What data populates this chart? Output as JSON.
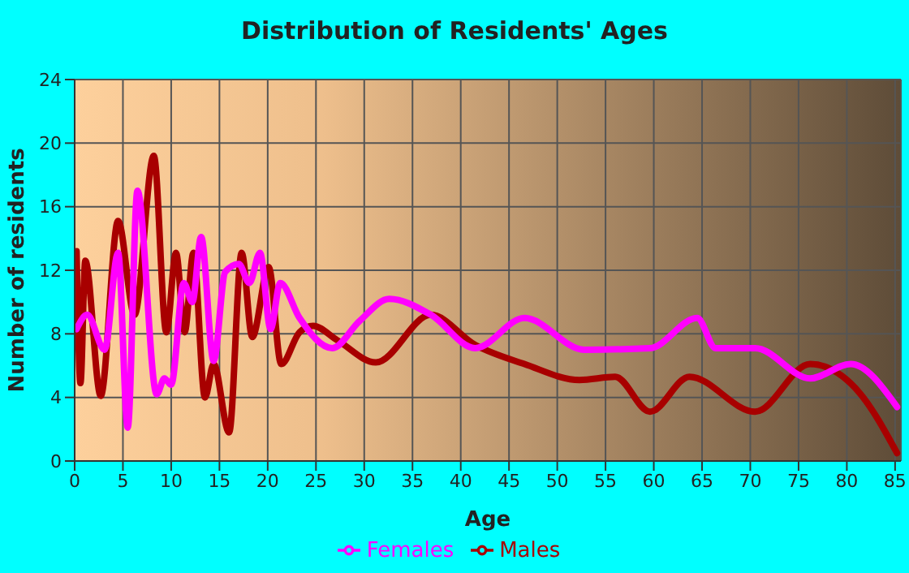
{
  "chart_data": {
    "type": "line",
    "title": "Distribution of Residents' Ages",
    "xlabel": "Age",
    "ylabel": "Number of residents",
    "xlim": [
      0,
      85.6
    ],
    "xticks": [
      0,
      5,
      10,
      15,
      20,
      25,
      30,
      35,
      40,
      45,
      50,
      55,
      60,
      65,
      70,
      75,
      80,
      85
    ],
    "ylim": [
      0,
      24
    ],
    "yticks": [
      0,
      4,
      8,
      12,
      16,
      20,
      24
    ],
    "grid": true,
    "legend": "bottom",
    "marker": "none",
    "line_style": "solid",
    "series": [
      {
        "name": "Males",
        "color": "#a80000",
        "x": [
          0.2,
          0.6,
          1.1,
          2.7,
          4.5,
          6.2,
          8.2,
          9.5,
          10.5,
          11.4,
          12.3,
          13.5,
          14.4,
          16,
          17.3,
          18.4,
          20.1,
          21.4,
          23.3,
          24.7,
          27.2,
          31.2,
          36.9,
          41.5,
          46.6,
          52.3,
          56,
          59.6,
          63.7,
          70.5,
          76.2,
          81.3,
          85.2
        ],
        "values": [
          13.2,
          4.9,
          12.6,
          4.1,
          15.1,
          9.2,
          19.2,
          8.1,
          13.1,
          8.1,
          13.1,
          4.0,
          6.1,
          1.8,
          13.1,
          7.8,
          12.2,
          6.1,
          8.1,
          8.5,
          7.6,
          6.2,
          9.2,
          7.3,
          6.1,
          5.1,
          5.3,
          3.1,
          5.3,
          3.1,
          6.1,
          4.3,
          0.5
        ]
      },
      {
        "name": "Females",
        "color": "#ff00ff",
        "x": [
          0.2,
          1.3,
          3.1,
          4.5,
          5.5,
          6.5,
          8.5,
          9.3,
          10,
          11.3,
          12.2,
          13.1,
          14.4,
          15.6,
          17,
          18.1,
          19.2,
          20.3,
          21.3,
          23.3,
          26.7,
          29.5,
          32.6,
          36.9,
          41.5,
          46.6,
          52.8,
          59.6,
          64.5,
          66.4,
          70.5,
          76.2,
          80.4,
          85.2
        ],
        "values": [
          8.3,
          9.2,
          7.0,
          13.1,
          2.1,
          17.0,
          4.2,
          5.2,
          4.8,
          11.2,
          10.0,
          14.1,
          6.3,
          11.9,
          12.4,
          11.2,
          13.1,
          8.3,
          11.2,
          9.0,
          7.1,
          8.8,
          10.2,
          9.2,
          7.1,
          9.0,
          7.0,
          7.1,
          9.0,
          7.1,
          7.1,
          5.2,
          6.1,
          3.4
        ]
      }
    ]
  }
}
